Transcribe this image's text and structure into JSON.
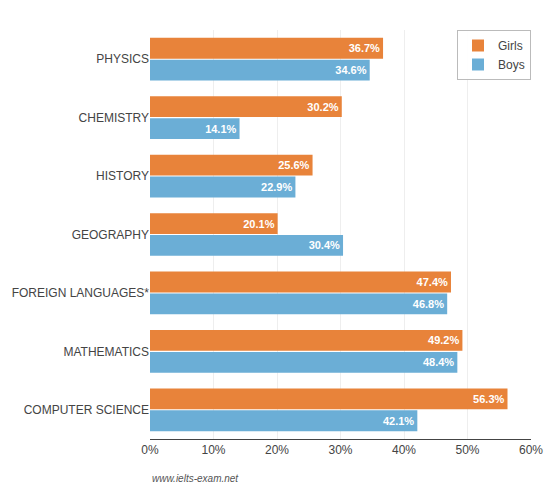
{
  "chart_data": {
    "type": "bar",
    "orientation": "horizontal",
    "categories": [
      "PHYSICS",
      "CHEMISTRY",
      "HISTORY",
      "GEOGRAPHY",
      "FOREIGN LANGUAGES*",
      "MATHEMATICS",
      "COMPUTER SCIENCE"
    ],
    "series": [
      {
        "name": "Girls",
        "color": "#E8833A",
        "values": [
          36.7,
          30.2,
          25.6,
          20.1,
          47.4,
          49.2,
          56.3
        ],
        "value_labels": [
          "36.7%",
          "30.2%",
          "25.6%",
          "20.1%",
          "47.4%",
          "49.2%",
          "56.3%"
        ]
      },
      {
        "name": "Boys",
        "color": "#6BAED6",
        "values": [
          34.6,
          14.1,
          22.9,
          30.4,
          46.8,
          48.4,
          42.1
        ],
        "value_labels": [
          "34.6%",
          "14.1%",
          "22.9%",
          "30.4%",
          "46.8%",
          "48.4%",
          "42.1%"
        ]
      }
    ],
    "xlim": [
      0,
      60
    ],
    "xticks": [
      {
        "value": 0,
        "label": "0%"
      },
      {
        "value": 10,
        "label": "10%"
      },
      {
        "value": 20,
        "label": "20%"
      },
      {
        "value": 30,
        "label": "30%"
      },
      {
        "value": 40,
        "label": "40%"
      },
      {
        "value": 50,
        "label": "50%"
      },
      {
        "value": 60,
        "label": "60%"
      }
    ],
    "grid": true,
    "legend": "upper right",
    "data_labels": true,
    "annotations": [
      "www.ielts-exam.net"
    ]
  }
}
